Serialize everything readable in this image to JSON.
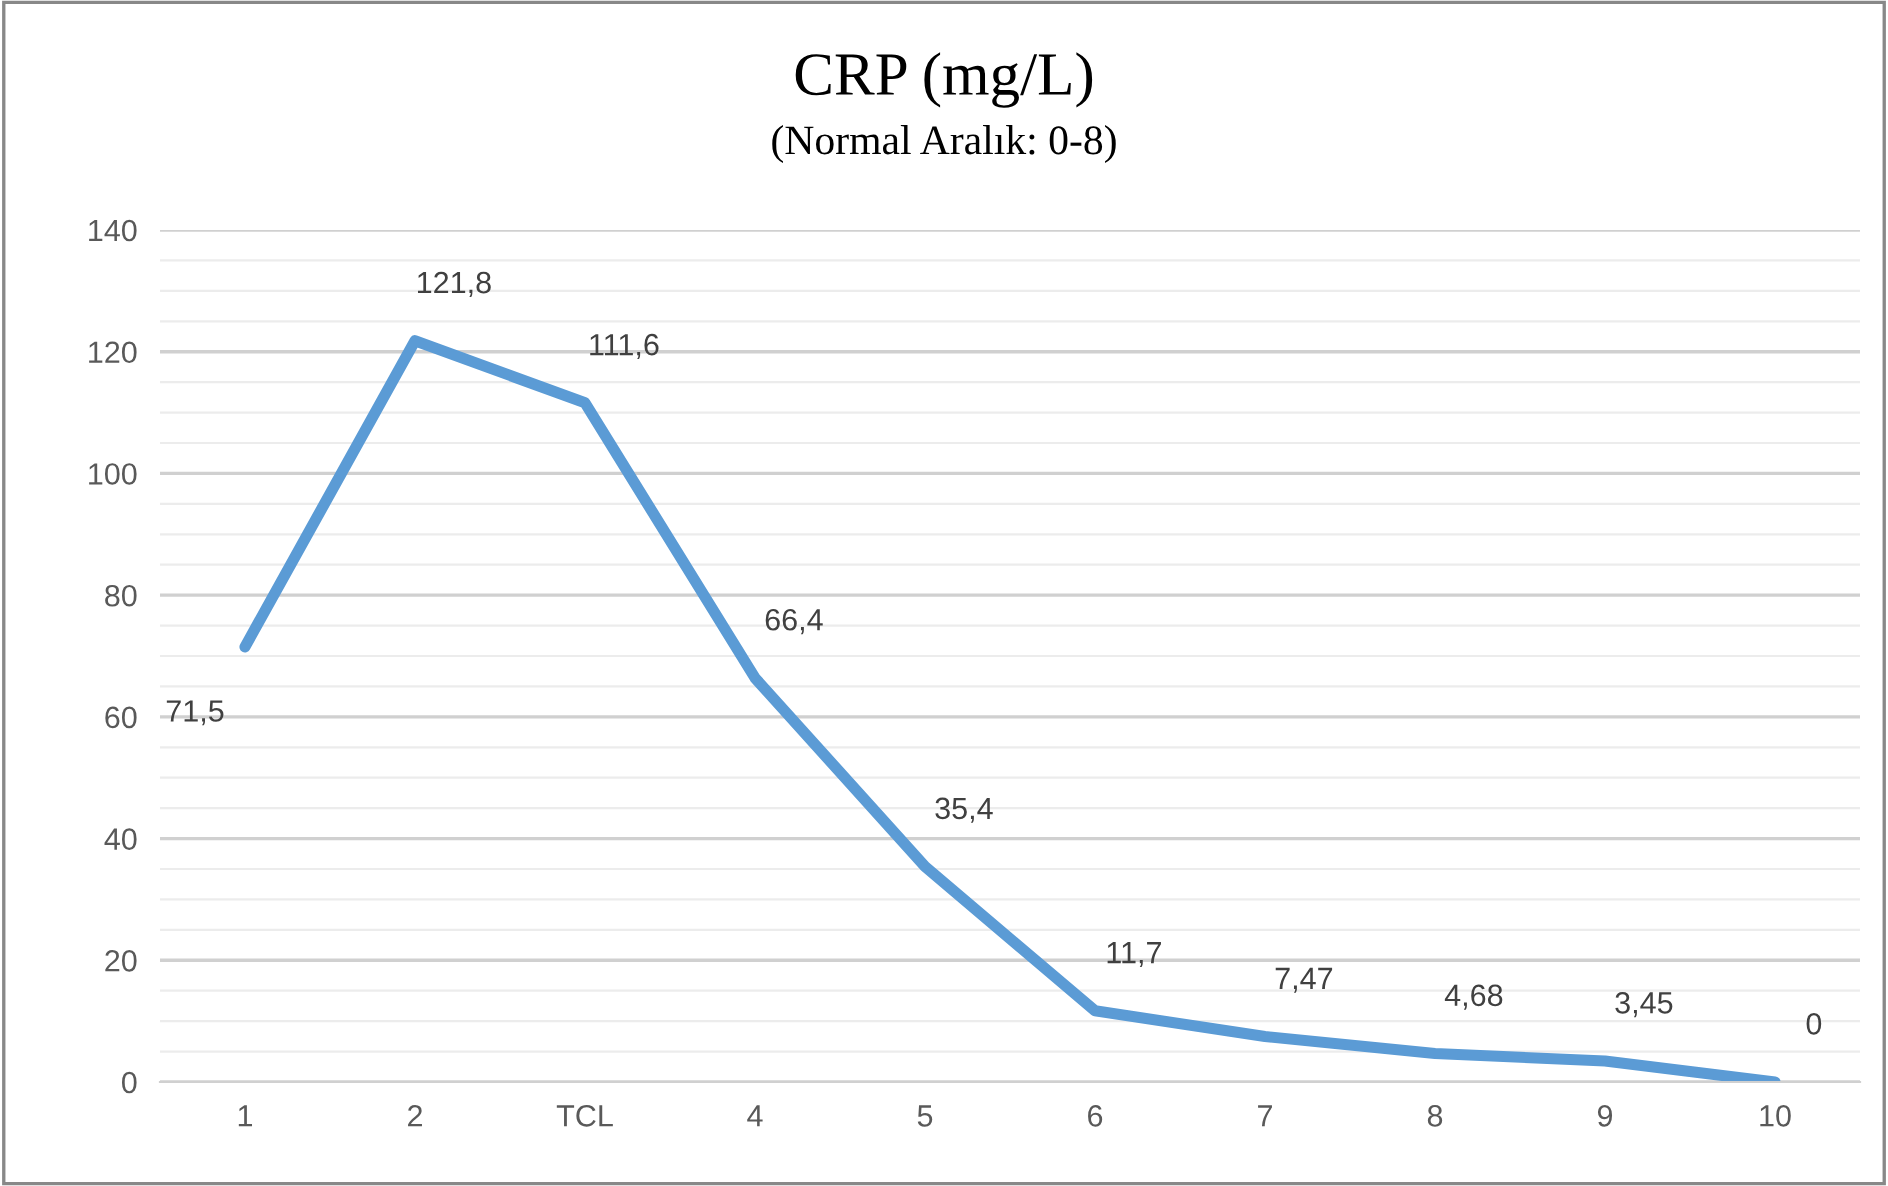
{
  "chart_data": {
    "type": "line",
    "title": "CRP (mg/L)",
    "subtitle": "(Normal Aralık: 0-8)",
    "categories": [
      "1",
      "2",
      "TCL",
      "4",
      "5",
      "6",
      "7",
      "8",
      "9",
      "10"
    ],
    "series": [
      {
        "color": "#5b9bd5",
        "values": [
          71.5,
          121.8,
          111.6,
          66.4,
          35.4,
          11.7,
          7.47,
          4.68,
          3.45,
          0
        ],
        "value_labels": [
          "71,5",
          "121,8",
          "111,6",
          "66,4",
          "35,4",
          "11,7",
          "7,47",
          "4,68",
          "3,45",
          "0"
        ]
      }
    ],
    "ylim": [
      0,
      140
    ],
    "yticks": [
      0,
      {
        "value": 5,
        "label": null
      },
      {
        "value": 10,
        "label": null
      },
      {
        "value": 15,
        "label": null
      },
      20,
      {
        "value": 25,
        "label": null
      },
      {
        "value": 30,
        "label": null
      },
      {
        "value": 35,
        "label": null
      },
      40,
      {
        "value": 45,
        "label": null
      },
      {
        "value": 50,
        "label": null
      },
      {
        "value": 55,
        "label": null
      },
      60,
      {
        "value": 65,
        "label": null
      },
      {
        "value": 70,
        "label": null
      },
      {
        "value": 75,
        "label": null
      },
      80,
      {
        "value": 85,
        "label": null
      },
      {
        "value": 90,
        "label": null
      },
      {
        "value": 95,
        "label": null
      },
      100,
      {
        "value": 105,
        "label": null
      },
      {
        "value": 110,
        "label": null
      },
      {
        "value": 115,
        "label": null
      },
      120,
      {
        "value": 125,
        "label": null
      },
      {
        "value": 130,
        "label": null
      },
      {
        "value": 135,
        "label": null
      },
      140
    ],
    "grid": "y",
    "legend": false,
    "marker": "none",
    "line_style": "solid"
  }
}
